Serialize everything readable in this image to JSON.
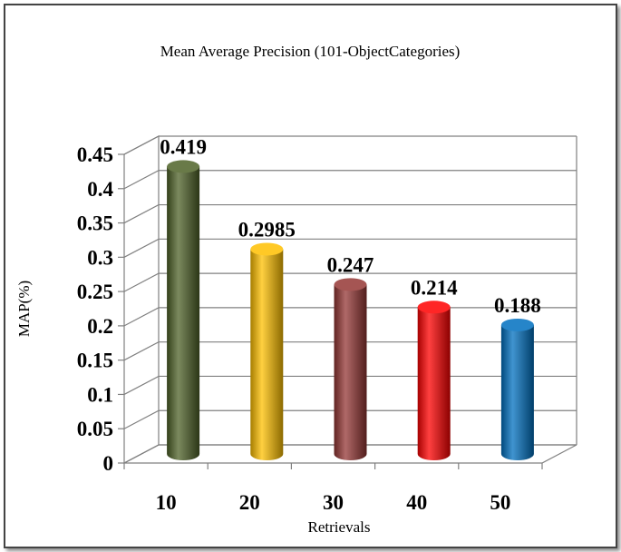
{
  "chart_data": {
    "type": "bar",
    "title": "Mean Average Precision (101-ObjectCategories)",
    "xlabel": "Retrievals",
    "ylabel": "MAP(%)",
    "categories": [
      "10",
      "20",
      "30",
      "40",
      "50"
    ],
    "values": [
      0.419,
      0.2985,
      0.247,
      0.214,
      0.188
    ],
    "value_labels": [
      "0.419",
      "0.2985",
      "0.247",
      "0.214",
      "0.188"
    ],
    "yticks": [
      "0",
      "0.05",
      "0.1",
      "0.15",
      "0.2",
      "0.25",
      "0.3",
      "0.35",
      "0.4",
      "0.45"
    ],
    "ylim": [
      0,
      0.45
    ],
    "grid": true,
    "legend": "none",
    "bar_style": "3d-cylinder",
    "colors": [
      "#4f6228",
      "#ffc000",
      "#953735",
      "#ff0000",
      "#0070c0"
    ]
  }
}
